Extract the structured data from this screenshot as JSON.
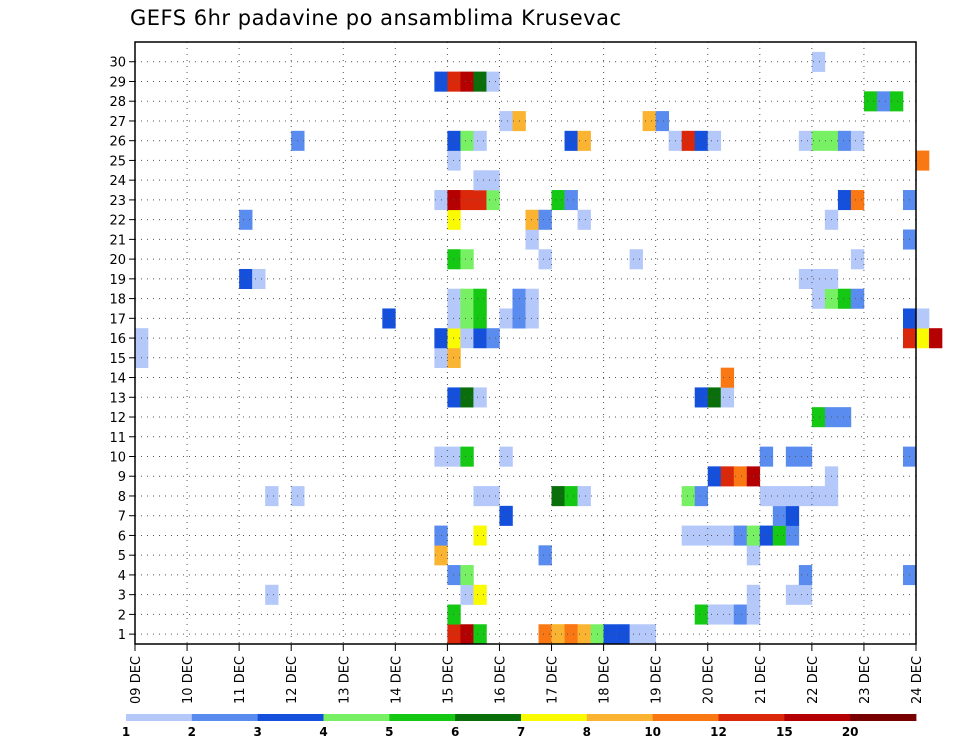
{
  "chart_data": {
    "type": "heatmap",
    "title": "GEFS 6hr padavine po ansamblima Krusevac",
    "xlabel": "",
    "ylabel": "",
    "members": [
      1,
      30
    ],
    "y_ticks": [
      "1",
      "2",
      "3",
      "4",
      "5",
      "6",
      "7",
      "8",
      "9",
      "10",
      "11",
      "12",
      "13",
      "14",
      "15",
      "16",
      "17",
      "18",
      "19",
      "20",
      "21",
      "22",
      "23",
      "24",
      "25",
      "26",
      "27",
      "28",
      "29",
      "30"
    ],
    "x_range_days": [
      0,
      15
    ],
    "x_ticks": [
      "09 DEC",
      "10 DEC",
      "11 DEC",
      "12 DEC",
      "13 DEC",
      "14 DEC",
      "15 DEC",
      "16 DEC",
      "17 DEC",
      "18 DEC",
      "19 DEC",
      "20 DEC",
      "21 DEC",
      "22 DEC",
      "23 DEC",
      "24 DEC"
    ],
    "time_step": "6hr",
    "grid": true,
    "colorbar": {
      "placement": "bottom",
      "labels": [
        "1",
        "2",
        "3",
        "4",
        "5",
        "6",
        "7",
        "8",
        "10",
        "12",
        "15",
        "20"
      ],
      "colors": [
        "#b4c8fa",
        "#5a8cf0",
        "#1450dc",
        "#78f064",
        "#14c814",
        "#0a6e0a",
        "#fafa00",
        "#fab432",
        "#fa7814",
        "#dc280a",
        "#b40000",
        "#780000"
      ]
    },
    "color_legend_level_index": "level k uses colors[k] for precip between labels[k] and labels[k+1]",
    "cells": [
      [
        1,
        6,
        0,
        9
      ],
      [
        1,
        6,
        1,
        10
      ],
      [
        1,
        6,
        2,
        4
      ],
      [
        1,
        7,
        3,
        8
      ],
      [
        1,
        7,
        4,
        6
      ],
      [
        1,
        7,
        5,
        8
      ],
      [
        1,
        8,
        0,
        7
      ],
      [
        1,
        8,
        1,
        8
      ],
      [
        1,
        8,
        2,
        7
      ],
      [
        1,
        8,
        3,
        3
      ],
      [
        1,
        9,
        0,
        2
      ],
      [
        1,
        9,
        1,
        2
      ],
      [
        1,
        9,
        2,
        0
      ],
      [
        1,
        9,
        3,
        0
      ],
      [
        2,
        6,
        0,
        4
      ],
      [
        2,
        10,
        3,
        4
      ],
      [
        2,
        11,
        0,
        0
      ],
      [
        2,
        11,
        1,
        0
      ],
      [
        2,
        11,
        2,
        1
      ],
      [
        2,
        11,
        3,
        0
      ],
      [
        3,
        6,
        1,
        0
      ],
      [
        3,
        6,
        2,
        6
      ],
      [
        3,
        11,
        3,
        0
      ],
      [
        3,
        12,
        2,
        0
      ],
      [
        3,
        12,
        3,
        0
      ],
      [
        3,
        2,
        2,
        0
      ],
      [
        4,
        6,
        0,
        1
      ],
      [
        4,
        6,
        1,
        3
      ],
      [
        4,
        12,
        3,
        1
      ],
      [
        4,
        14,
        3,
        1
      ],
      [
        5,
        5,
        3,
        7
      ],
      [
        5,
        7,
        3,
        1
      ],
      [
        5,
        11,
        3,
        0
      ],
      [
        6,
        5,
        3,
        1
      ],
      [
        6,
        6,
        2,
        6
      ],
      [
        6,
        10,
        2,
        0
      ],
      [
        6,
        10,
        3,
        0
      ],
      [
        6,
        11,
        0,
        0
      ],
      [
        6,
        11,
        1,
        0
      ],
      [
        6,
        11,
        2,
        1
      ],
      [
        6,
        11,
        3,
        3
      ],
      [
        6,
        12,
        0,
        2
      ],
      [
        6,
        12,
        1,
        4
      ],
      [
        6,
        12,
        2,
        1
      ],
      [
        7,
        7,
        0,
        2
      ],
      [
        7,
        12,
        1,
        1
      ],
      [
        7,
        12,
        2,
        2
      ],
      [
        8,
        2,
        2,
        0
      ],
      [
        8,
        3,
        0,
        0
      ],
      [
        8,
        6,
        2,
        0
      ],
      [
        8,
        6,
        3,
        0
      ],
      [
        8,
        8,
        0,
        5
      ],
      [
        8,
        8,
        1,
        4
      ],
      [
        8,
        8,
        2,
        0
      ],
      [
        8,
        10,
        2,
        3
      ],
      [
        8,
        10,
        3,
        1
      ],
      [
        8,
        12,
        0,
        0
      ],
      [
        8,
        12,
        1,
        0
      ],
      [
        8,
        12,
        2,
        0
      ],
      [
        8,
        12,
        3,
        0
      ],
      [
        8,
        13,
        0,
        0
      ],
      [
        8,
        13,
        1,
        0
      ],
      [
        9,
        11,
        0,
        2
      ],
      [
        9,
        11,
        1,
        9
      ],
      [
        9,
        11,
        2,
        8
      ],
      [
        9,
        11,
        3,
        10
      ],
      [
        9,
        13,
        1,
        0
      ],
      [
        10,
        5,
        3,
        0
      ],
      [
        10,
        6,
        0,
        0
      ],
      [
        10,
        6,
        1,
        4
      ],
      [
        10,
        7,
        0,
        0
      ],
      [
        10,
        12,
        0,
        1
      ],
      [
        10,
        12,
        2,
        1
      ],
      [
        10,
        12,
        3,
        1
      ],
      [
        10,
        14,
        3,
        1
      ],
      [
        12,
        13,
        0,
        4
      ],
      [
        12,
        13,
        1,
        1
      ],
      [
        12,
        13,
        2,
        1
      ],
      [
        13,
        6,
        0,
        2
      ],
      [
        13,
        6,
        1,
        5
      ],
      [
        13,
        6,
        2,
        0
      ],
      [
        13,
        10,
        3,
        2
      ],
      [
        13,
        11,
        0,
        5
      ],
      [
        13,
        11,
        1,
        0
      ],
      [
        14,
        11,
        1,
        8
      ],
      [
        15,
        0,
        0,
        0
      ],
      [
        15,
        5,
        3,
        0
      ],
      [
        15,
        6,
        0,
        7
      ],
      [
        16,
        0,
        0,
        0
      ],
      [
        16,
        5,
        3,
        2
      ],
      [
        16,
        6,
        0,
        6
      ],
      [
        16,
        6,
        1,
        0
      ],
      [
        16,
        6,
        2,
        2
      ],
      [
        16,
        6,
        3,
        1
      ],
      [
        16,
        14,
        3,
        9
      ],
      [
        16,
        15,
        0,
        6
      ],
      [
        16,
        15,
        1,
        10
      ],
      [
        17,
        4,
        3,
        2
      ],
      [
        17,
        6,
        0,
        0
      ],
      [
        17,
        6,
        1,
        3
      ],
      [
        17,
        6,
        2,
        4
      ],
      [
        17,
        7,
        0,
        0
      ],
      [
        17,
        7,
        1,
        1
      ],
      [
        17,
        7,
        2,
        0
      ],
      [
        17,
        14,
        3,
        2
      ],
      [
        17,
        15,
        0,
        0
      ],
      [
        18,
        6,
        0,
        0
      ],
      [
        18,
        6,
        1,
        3
      ],
      [
        18,
        6,
        2,
        4
      ],
      [
        18,
        7,
        1,
        1
      ],
      [
        18,
        7,
        2,
        0
      ],
      [
        18,
        13,
        0,
        0
      ],
      [
        18,
        13,
        1,
        3
      ],
      [
        18,
        13,
        2,
        4
      ],
      [
        18,
        13,
        3,
        1
      ],
      [
        19,
        2,
        0,
        2
      ],
      [
        19,
        2,
        1,
        0
      ],
      [
        19,
        12,
        3,
        0
      ],
      [
        19,
        13,
        0,
        0
      ],
      [
        19,
        13,
        1,
        0
      ],
      [
        20,
        6,
        0,
        4
      ],
      [
        20,
        6,
        1,
        3
      ],
      [
        20,
        7,
        3,
        0
      ],
      [
        20,
        9,
        2,
        0
      ],
      [
        20,
        13,
        3,
        0
      ],
      [
        21,
        7,
        2,
        0
      ],
      [
        21,
        14,
        3,
        1
      ],
      [
        22,
        2,
        0,
        1
      ],
      [
        22,
        6,
        0,
        6
      ],
      [
        22,
        7,
        2,
        7
      ],
      [
        22,
        7,
        3,
        1
      ],
      [
        22,
        8,
        2,
        0
      ],
      [
        22,
        13,
        1,
        0
      ],
      [
        23,
        5,
        3,
        0
      ],
      [
        23,
        6,
        0,
        10
      ],
      [
        23,
        6,
        1,
        9
      ],
      [
        23,
        6,
        2,
        9
      ],
      [
        23,
        6,
        3,
        3
      ],
      [
        23,
        8,
        0,
        4
      ],
      [
        23,
        8,
        1,
        1
      ],
      [
        23,
        13,
        2,
        2
      ],
      [
        23,
        13,
        3,
        8
      ],
      [
        23,
        14,
        3,
        1
      ],
      [
        24,
        6,
        2,
        0
      ],
      [
        24,
        6,
        3,
        0
      ],
      [
        25,
        6,
        0,
        0
      ],
      [
        25,
        15,
        0,
        8
      ],
      [
        26,
        3,
        0,
        1
      ],
      [
        26,
        6,
        0,
        2
      ],
      [
        26,
        6,
        1,
        3
      ],
      [
        26,
        6,
        2,
        0
      ],
      [
        26,
        8,
        1,
        2
      ],
      [
        26,
        8,
        2,
        7
      ],
      [
        26,
        10,
        1,
        0
      ],
      [
        26,
        10,
        2,
        9
      ],
      [
        26,
        10,
        3,
        2
      ],
      [
        26,
        11,
        0,
        0
      ],
      [
        26,
        12,
        3,
        0
      ],
      [
        26,
        13,
        0,
        3
      ],
      [
        26,
        13,
        1,
        3
      ],
      [
        26,
        13,
        2,
        1
      ],
      [
        26,
        13,
        3,
        0
      ],
      [
        27,
        7,
        0,
        0
      ],
      [
        27,
        7,
        1,
        7
      ],
      [
        27,
        9,
        3,
        7
      ],
      [
        27,
        10,
        0,
        1
      ],
      [
        28,
        14,
        0,
        4
      ],
      [
        28,
        14,
        1,
        1
      ],
      [
        28,
        14,
        2,
        4
      ],
      [
        29,
        5,
        3,
        2
      ],
      [
        29,
        6,
        0,
        9
      ],
      [
        29,
        6,
        1,
        10
      ],
      [
        29,
        6,
        2,
        5
      ],
      [
        29,
        6,
        3,
        0
      ],
      [
        30,
        13,
        0,
        0
      ]
    ]
  }
}
